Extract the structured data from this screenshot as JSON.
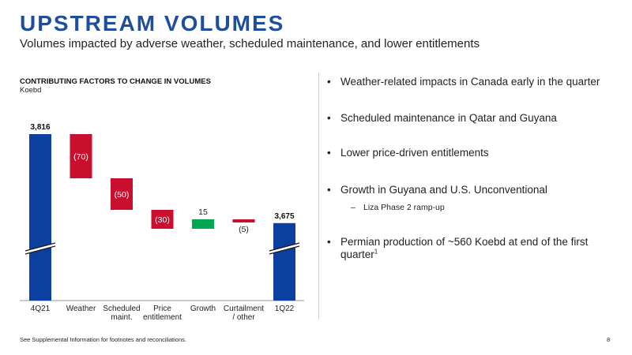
{
  "page": {
    "title": "UPSTREAM VOLUMES",
    "subtitle": "Volumes impacted by adverse weather, scheduled maintenance, and lower entitlements",
    "footnote": "See Supplemental Information for footnotes and reconciliations.",
    "page_number": "8"
  },
  "colors": {
    "total": "#0b3fa0",
    "decrease": "#c8102e",
    "increase": "#00a651",
    "title": "#1f4e9c"
  },
  "bullets": [
    {
      "text": "Weather-related impacts in Canada early in the quarter"
    },
    {
      "text": "Scheduled maintenance in Qatar and Guyana"
    },
    {
      "text": "Lower price-driven entitlements"
    },
    {
      "text": "Growth in Guyana and U.S. Unconventional",
      "sub": "Liza Phase 2 ramp-up"
    },
    {
      "text": "Permian production of ~560 Koebd at end of the first quarter",
      "sup": "1"
    }
  ],
  "bullet_symbol": "•",
  "sub_bullet_symbol": "–",
  "chart_data": {
    "type": "waterfall",
    "title": "CONTRIBUTING FACTORS TO CHANGE IN VOLUMES",
    "unit": "Koebd",
    "axis_break": true,
    "categories": [
      "4Q21",
      "Weather",
      "Scheduled maint.",
      "Price entitlement",
      "Growth",
      "Curtailment / other",
      "1Q22"
    ],
    "values": [
      3816,
      -70,
      -50,
      -30,
      15,
      -5,
      3675
    ],
    "kinds": [
      "total",
      "decrease",
      "decrease",
      "decrease",
      "increase",
      "decrease",
      "total"
    ],
    "labels": [
      "3,816",
      "(70)",
      "(50)",
      "(30)",
      "15",
      "(5)",
      "3,675"
    ]
  }
}
